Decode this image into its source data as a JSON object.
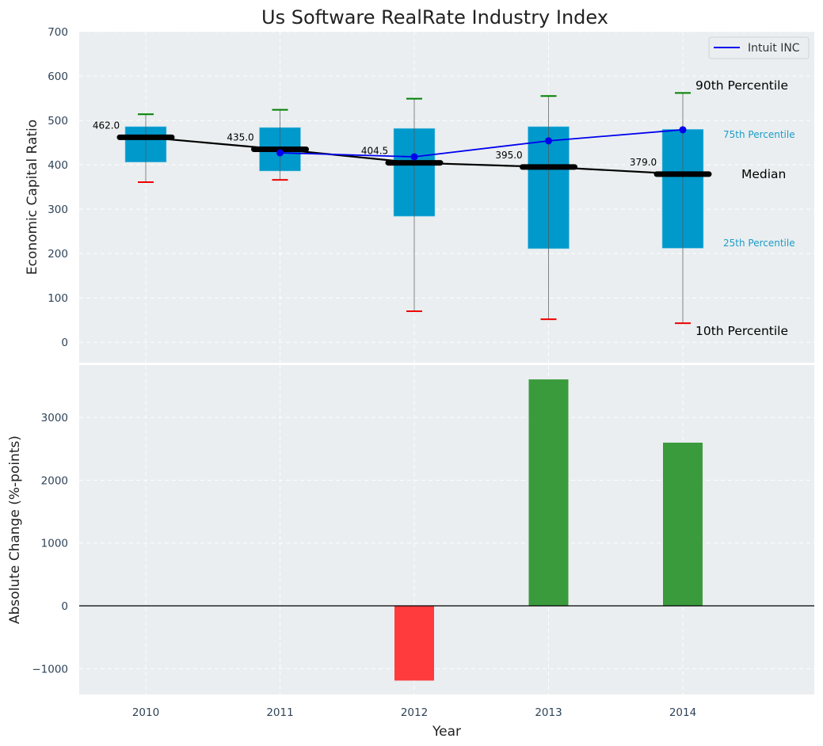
{
  "chart_data": [
    {
      "type": "box",
      "title": "Us Software RealRate Industry Index",
      "xlabel": "",
      "ylabel": "Economic Capital Ratio",
      "ylim": [
        -46,
        700
      ],
      "yticks": [
        0,
        100,
        200,
        300,
        400,
        500,
        600,
        700
      ],
      "grid": true,
      "categories": [
        "2010",
        "2011",
        "2012",
        "2013",
        "2014"
      ],
      "percentiles": {
        "p10": [
          361,
          366,
          70,
          52,
          43
        ],
        "p25": [
          406,
          386,
          284,
          211,
          212
        ],
        "median": [
          462.0,
          435.0,
          404.5,
          395.0,
          379.0
        ],
        "p75": [
          486,
          484,
          482,
          486,
          480
        ],
        "p90": [
          514,
          524,
          549,
          555,
          562
        ]
      },
      "median_labels": [
        "462.0",
        "435.0",
        "404.5",
        "395.0",
        "379.0"
      ],
      "series": [
        {
          "name": "Intuit INC",
          "x": [
            "2011",
            "2012",
            "2013",
            "2014"
          ],
          "values": [
            427,
            418,
            454,
            479
          ],
          "color": "#0000ee"
        }
      ],
      "legend": {
        "position": "top-right",
        "entries": [
          "Intuit INC"
        ]
      },
      "annotations": {
        "p90": "90th Percentile",
        "p75": "75th Percentile",
        "median": "Median",
        "p25": "25th Percentile",
        "p10": "10th Percentile"
      },
      "colors": {
        "box": "#0099cc",
        "whisker_top": "#008000",
        "whisker_bottom": "#ee0000",
        "median": "#000000",
        "percentile_label": "#1a9cc7",
        "background": "#eaeef0"
      }
    },
    {
      "type": "bar",
      "title": "",
      "xlabel": "Year",
      "ylabel": "Absolute Change (%-points)",
      "ylim": [
        -1412,
        3833
      ],
      "yticks": [
        -1000,
        0,
        1000,
        2000,
        3000
      ],
      "ytick_labels": [
        "−1000",
        "0",
        "1000",
        "2000",
        "3000"
      ],
      "grid": true,
      "categories": [
        "2010",
        "2011",
        "2012",
        "2013",
        "2014"
      ],
      "values": [
        0,
        0,
        -1190,
        3605,
        2598
      ],
      "colors": {
        "positive": "#3a9b3c",
        "negative": "#ff3b3d"
      }
    }
  ]
}
